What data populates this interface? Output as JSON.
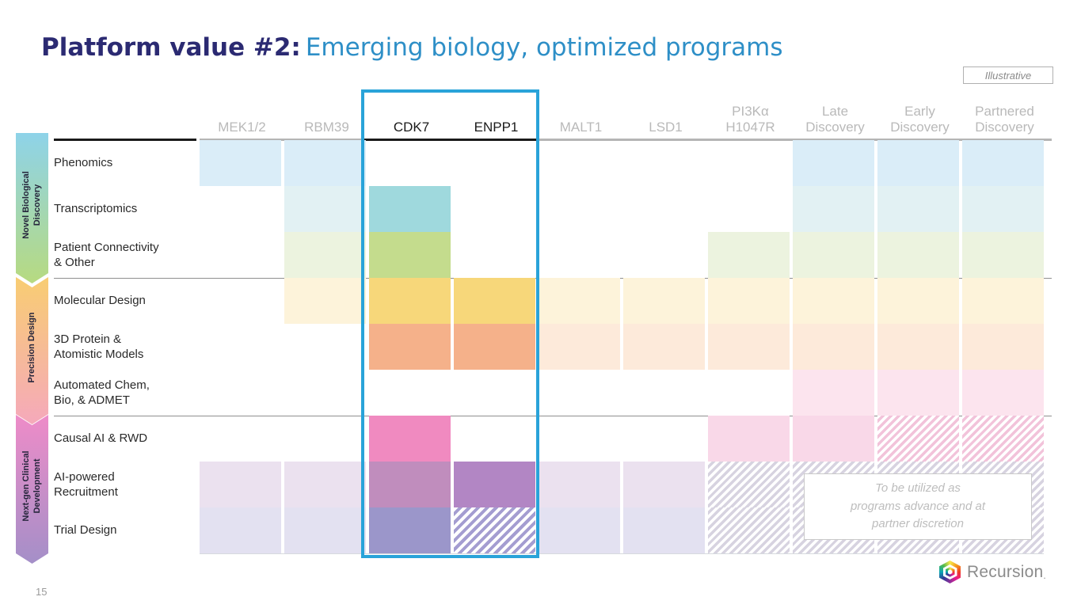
{
  "slide": {
    "title": {
      "bold": "Platform value #2:",
      "regular": "Emerging biology, optimized programs"
    },
    "illustrative": "Illustrative",
    "page_number": "15",
    "logo": {
      "name": "Recursion",
      "suffix": "."
    },
    "note": {
      "lines": [
        "To be utilized as",
        "programs advance and at",
        "partner discretion"
      ]
    }
  },
  "colors": {
    "title_bold": "#2b2a72",
    "title_regular": "#2e8fc7",
    "highlight_box": "#29a3d9",
    "header_active": "#1a1a1a",
    "header_inactive": "#b9b9b9"
  },
  "palette": {
    "blue-f": {
      "type": "solid",
      "color": "#daedf8"
    },
    "teal-f": {
      "type": "solid",
      "color": "#e2f1f3"
    },
    "green-f": {
      "type": "solid",
      "color": "#ecf3df"
    },
    "yellow-f": {
      "type": "solid",
      "color": "#fdf3da"
    },
    "orange-f": {
      "type": "solid",
      "color": "#fdeada"
    },
    "pink-f": {
      "type": "solid",
      "color": "#fce4ee"
    },
    "pinkrow-f": {
      "type": "solid",
      "color": "#f9d8e8"
    },
    "lav-f": {
      "type": "solid",
      "color": "#ebe1ef"
    },
    "lavblue-f": {
      "type": "solid",
      "color": "#e3e1f1"
    },
    "teal": {
      "type": "solid",
      "color": "#9fd9dd"
    },
    "green": {
      "type": "solid",
      "color": "#c4dc8d"
    },
    "yellow": {
      "type": "solid",
      "color": "#f7d77a"
    },
    "orange": {
      "type": "solid",
      "color": "#f5b18a"
    },
    "pink": {
      "type": "solid",
      "color": "#f08ac0"
    },
    "mauve": {
      "type": "solid",
      "color": "#c08dbd"
    },
    "purple": {
      "type": "solid",
      "color": "#b286c4"
    },
    "bluepurple": {
      "type": "solid",
      "color": "#9b96ca"
    },
    "hatch-purple": {
      "type": "hatch",
      "color": "#a49dd1",
      "pitch": 8
    },
    "hatch-pink": {
      "type": "hatch",
      "color": "#f2c3da",
      "pitch": 7
    },
    "hatch-gray": {
      "type": "hatch",
      "color": "#d7d3e0",
      "pitch": 7
    }
  },
  "matrix": {
    "groups": [
      {
        "lines": [
          "Novel Biological",
          "Discovery"
        ],
        "gradient": [
          "#8ed3e9",
          "#b7da80"
        ]
      },
      {
        "lines": [
          "Precision Design"
        ],
        "gradient": [
          "#f8cd72",
          "#f5a9bb"
        ]
      },
      {
        "lines": [
          "Next-gen Clinical",
          "Development"
        ],
        "gradient": [
          "#ee8cc8",
          "#a48fc8"
        ]
      }
    ],
    "rows": [
      {
        "lines": [
          "Phenomics"
        ]
      },
      {
        "lines": [
          "Transcriptomics"
        ]
      },
      {
        "lines": [
          "Patient Connectivity",
          "& Other"
        ]
      },
      {
        "lines": [
          "Molecular Design"
        ]
      },
      {
        "lines": [
          "3D Protein &",
          "Atomistic Models"
        ]
      },
      {
        "lines": [
          "Automated Chem,",
          "Bio, & ADMET"
        ]
      },
      {
        "lines": [
          "Causal AI & RWD"
        ]
      },
      {
        "lines": [
          "AI-powered",
          "Recruitment"
        ]
      },
      {
        "lines": [
          "Trial Design"
        ]
      }
    ],
    "columns": [
      {
        "id": "mek12",
        "label": "MEK1/2",
        "active": false,
        "cells": [
          "blue-f",
          "",
          "",
          "",
          "",
          "",
          "",
          "lav-f",
          "lavblue-f"
        ]
      },
      {
        "id": "rbm39",
        "label": "RBM39",
        "active": false,
        "cells": [
          "blue-f",
          "teal-f",
          "green-f",
          "yellow-f",
          "",
          "",
          "",
          "lav-f",
          "lavblue-f"
        ]
      },
      {
        "id": "cdk7",
        "label": "CDK7",
        "active": true,
        "cells": [
          "",
          "teal",
          "green",
          "yellow",
          "orange",
          "",
          "pink",
          "mauve",
          "bluepurple"
        ]
      },
      {
        "id": "enpp1",
        "label": "ENPP1",
        "active": true,
        "cells": [
          "",
          "",
          "",
          "yellow",
          "orange",
          "",
          "",
          "purple",
          "hatch-purple"
        ]
      },
      {
        "id": "malt1",
        "label": "MALT1",
        "active": false,
        "cells": [
          "",
          "",
          "",
          "yellow-f",
          "orange-f",
          "",
          "",
          "lav-f",
          "lavblue-f"
        ]
      },
      {
        "id": "lsd1",
        "label": "LSD1",
        "active": false,
        "cells": [
          "",
          "",
          "",
          "yellow-f",
          "orange-f",
          "",
          "",
          "lav-f",
          "lavblue-f"
        ]
      },
      {
        "id": "pi3ka",
        "label": "PI3Kα H1047R",
        "active": false,
        "cells": [
          "",
          "",
          "green-f",
          "yellow-f",
          "orange-f",
          "",
          "pinkrow-f",
          "hatch-gray",
          "hatch-gray"
        ]
      },
      {
        "id": "late",
        "label": "Late Discovery",
        "active": false,
        "cells": [
          "blue-f",
          "teal-f",
          "green-f",
          "yellow-f",
          "orange-f",
          "pink-f",
          "pinkrow-f",
          "hatch-gray",
          "hatch-gray"
        ]
      },
      {
        "id": "early",
        "label": "Early Discovery",
        "active": false,
        "cells": [
          "blue-f",
          "teal-f",
          "green-f",
          "yellow-f",
          "orange-f",
          "pink-f",
          "hatch-pink",
          "hatch-gray",
          "hatch-gray"
        ]
      },
      {
        "id": "partnered",
        "label": "Partnered Discovery",
        "active": false,
        "cells": [
          "blue-f",
          "teal-f",
          "green-f",
          "yellow-f",
          "orange-f",
          "pink-f",
          "hatch-pink",
          "hatch-gray",
          "hatch-gray"
        ]
      }
    ]
  }
}
